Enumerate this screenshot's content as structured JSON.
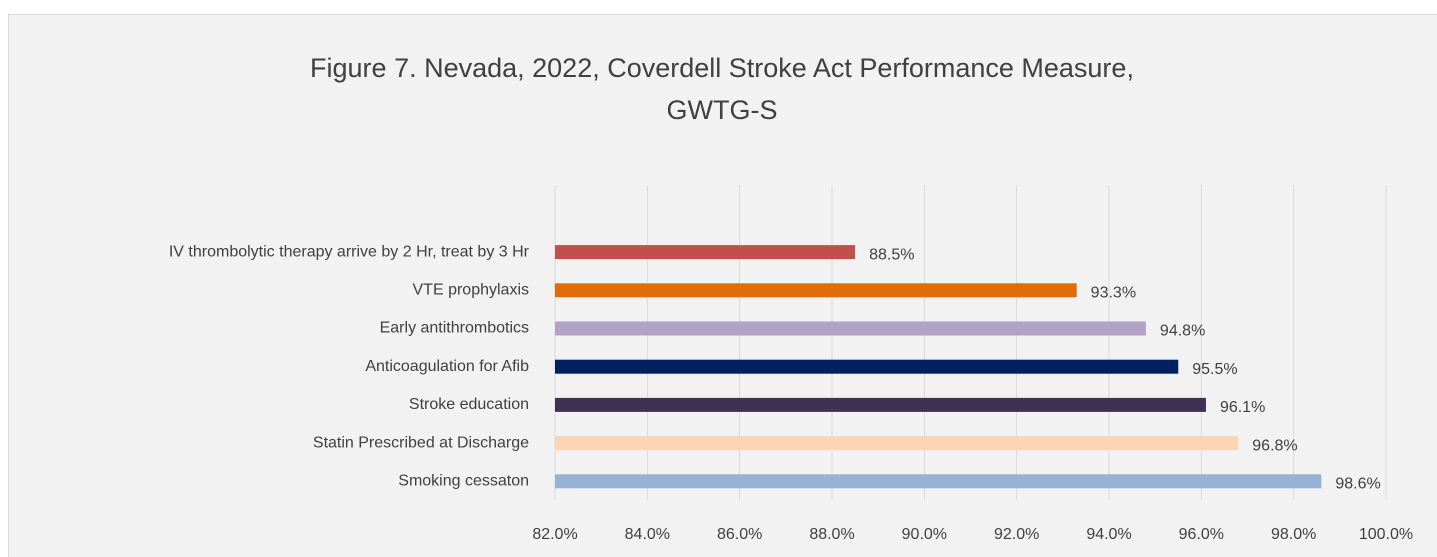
{
  "chart_data": {
    "type": "barh",
    "title": [
      "Figure 7. Nevada, 2022, Coverdell Stroke Act Performance Measure,",
      "GWTG-S"
    ],
    "categories": [
      "IV thrombolytic therapy arrive by 2 Hr, treat by 3 Hr",
      "VTE prophylaxis",
      "Early antithrombotics",
      "Anticoagulation for Afib",
      "Stroke education",
      "Statin Prescribed at Discharge",
      "Smoking cessaton"
    ],
    "values": [
      88.5,
      93.3,
      94.8,
      95.5,
      96.1,
      96.8,
      98.6
    ],
    "value_labels": [
      "88.5%",
      "93.3%",
      "94.8%",
      "95.5%",
      "96.1%",
      "96.8%",
      "98.6%"
    ],
    "colors": [
      "#c0504d",
      "#e36c0a",
      "#b3a2c7",
      "#002060",
      "#403152",
      "#fbd4b4",
      "#95b3d7"
    ],
    "xlim": [
      82,
      100
    ],
    "xticks": [
      {
        "value": 82,
        "label": "82.0%"
      },
      {
        "value": 84,
        "label": "84.0%"
      },
      {
        "value": 86,
        "label": "86.0%"
      },
      {
        "value": 88,
        "label": "88.0%"
      },
      {
        "value": 90,
        "label": "90.0%"
      },
      {
        "value": 92,
        "label": "92.0%"
      },
      {
        "value": 94,
        "label": "94.0%"
      },
      {
        "value": 96,
        "label": "96.0%"
      },
      {
        "value": 98,
        "label": "98.0%"
      },
      {
        "value": 100,
        "label": "100.0%"
      }
    ],
    "grid": true
  }
}
